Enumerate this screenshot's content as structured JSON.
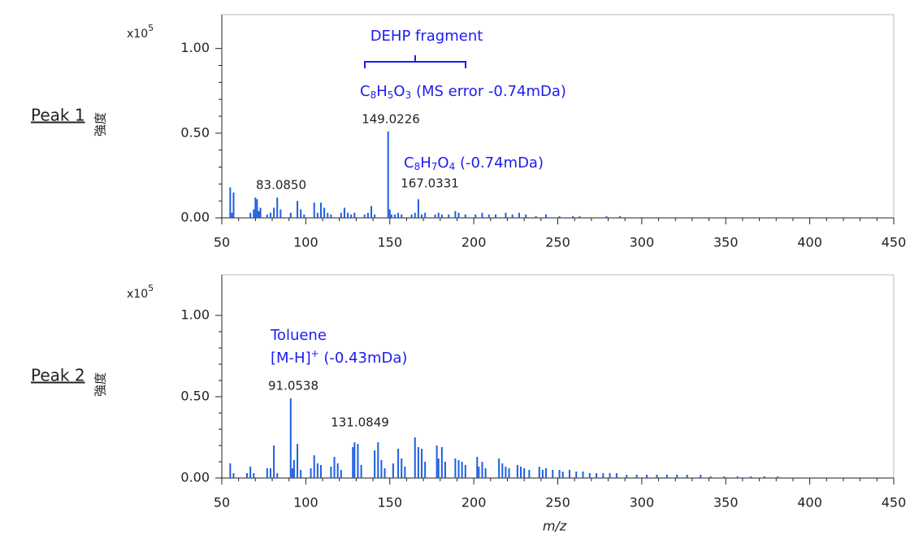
{
  "chart_data": [
    {
      "type": "bar",
      "row_label": "Peak 1",
      "y_label": "強度",
      "y_multiplier": "x10",
      "y_exponent": "5",
      "color": "#1d5fe3",
      "x": [
        55,
        56,
        57,
        67,
        69,
        70,
        71,
        72,
        73,
        77,
        79,
        81,
        83,
        85,
        91,
        95,
        97,
        99,
        105,
        107,
        109,
        111,
        113,
        115,
        121,
        123,
        125,
        127,
        129,
        135,
        137,
        139,
        141,
        149,
        150,
        151,
        153,
        155,
        157,
        163,
        165,
        167,
        169,
        171,
        177,
        179,
        181,
        185,
        189,
        191,
        195,
        201,
        205,
        209,
        213,
        219,
        223,
        227,
        231,
        237,
        243,
        251,
        259,
        263,
        279,
        287
      ],
      "values": [
        0.18,
        0.03,
        0.15,
        0.03,
        0.05,
        0.12,
        0.11,
        0.04,
        0.06,
        0.02,
        0.03,
        0.06,
        0.12,
        0.05,
        0.03,
        0.1,
        0.05,
        0.02,
        0.09,
        0.03,
        0.09,
        0.06,
        0.03,
        0.02,
        0.03,
        0.06,
        0.03,
        0.02,
        0.03,
        0.02,
        0.03,
        0.07,
        0.02,
        0.51,
        0.05,
        0.02,
        0.02,
        0.03,
        0.02,
        0.02,
        0.03,
        0.11,
        0.02,
        0.03,
        0.02,
        0.03,
        0.02,
        0.02,
        0.04,
        0.03,
        0.02,
        0.02,
        0.03,
        0.02,
        0.02,
        0.03,
        0.02,
        0.03,
        0.02,
        0.01,
        0.02,
        0.01,
        0.01,
        0.01,
        0.01,
        0.01
      ],
      "xlim": [
        50,
        450
      ],
      "xticks": [
        50,
        100,
        150,
        200,
        250,
        300,
        350,
        400,
        450
      ],
      "ylim": [
        0,
        1.2
      ],
      "yticks": [
        {
          "value": 0,
          "label": "0.00"
        },
        {
          "value": 0.5,
          "label": "0.50"
        },
        {
          "value": 1,
          "label": "1.00"
        }
      ],
      "peak_labels": [
        "83.0850",
        "149.0226",
        "167.0331"
      ],
      "annotations": [
        "DEHP fragment",
        "C8H5O3 (MS error -0.74mDa)",
        "C8H7O4 (-0.74mDa)"
      ]
    },
    {
      "type": "bar",
      "row_label": "Peak 2",
      "y_label": "強度",
      "y_multiplier": "x10",
      "y_exponent": "5",
      "color": "#1d5fe3",
      "x_label": "m/z",
      "x": [
        55,
        57,
        65,
        67,
        69,
        77,
        79,
        81,
        83,
        91,
        92,
        93,
        95,
        97,
        103,
        105,
        107,
        109,
        115,
        117,
        119,
        121,
        128,
        129,
        131,
        133,
        141,
        143,
        145,
        147,
        152,
        155,
        157,
        159,
        165,
        167,
        169,
        171,
        178,
        179,
        181,
        183,
        189,
        191,
        193,
        195,
        202,
        203,
        205,
        207,
        215,
        217,
        219,
        221,
        226,
        228,
        230,
        233,
        239,
        241,
        243,
        247,
        251,
        253,
        257,
        261,
        265,
        269,
        273,
        277,
        281,
        285,
        291,
        297,
        303,
        309,
        315,
        321,
        327,
        335,
        341,
        349,
        357,
        365,
        373,
        381
      ],
      "values": [
        0.09,
        0.03,
        0.03,
        0.07,
        0.03,
        0.06,
        0.06,
        0.2,
        0.03,
        0.49,
        0.06,
        0.11,
        0.21,
        0.05,
        0.06,
        0.14,
        0.09,
        0.08,
        0.07,
        0.13,
        0.09,
        0.05,
        0.19,
        0.22,
        0.21,
        0.08,
        0.17,
        0.22,
        0.11,
        0.06,
        0.09,
        0.18,
        0.12,
        0.07,
        0.25,
        0.19,
        0.18,
        0.1,
        0.2,
        0.12,
        0.19,
        0.1,
        0.12,
        0.11,
        0.1,
        0.08,
        0.13,
        0.07,
        0.1,
        0.06,
        0.12,
        0.09,
        0.07,
        0.06,
        0.08,
        0.07,
        0.06,
        0.05,
        0.07,
        0.05,
        0.06,
        0.05,
        0.05,
        0.04,
        0.05,
        0.04,
        0.04,
        0.03,
        0.03,
        0.03,
        0.03,
        0.03,
        0.02,
        0.02,
        0.02,
        0.02,
        0.02,
        0.02,
        0.02,
        0.02,
        0.01,
        0.01,
        0.01,
        0.01,
        0.01,
        0.01
      ],
      "xlim": [
        50,
        450
      ],
      "xticks": [
        50,
        100,
        150,
        200,
        250,
        300,
        350,
        400,
        450
      ],
      "ylim": [
        0,
        1.25
      ],
      "yticks": [
        {
          "value": 0,
          "label": "0.00"
        },
        {
          "value": 0.5,
          "label": "0.50"
        },
        {
          "value": 1,
          "label": "1.00"
        }
      ],
      "peak_labels": [
        "91.0538",
        "131.0849"
      ],
      "annotations": [
        "Toluene",
        "[M-H]+ (-0.43mDa)"
      ]
    }
  ]
}
